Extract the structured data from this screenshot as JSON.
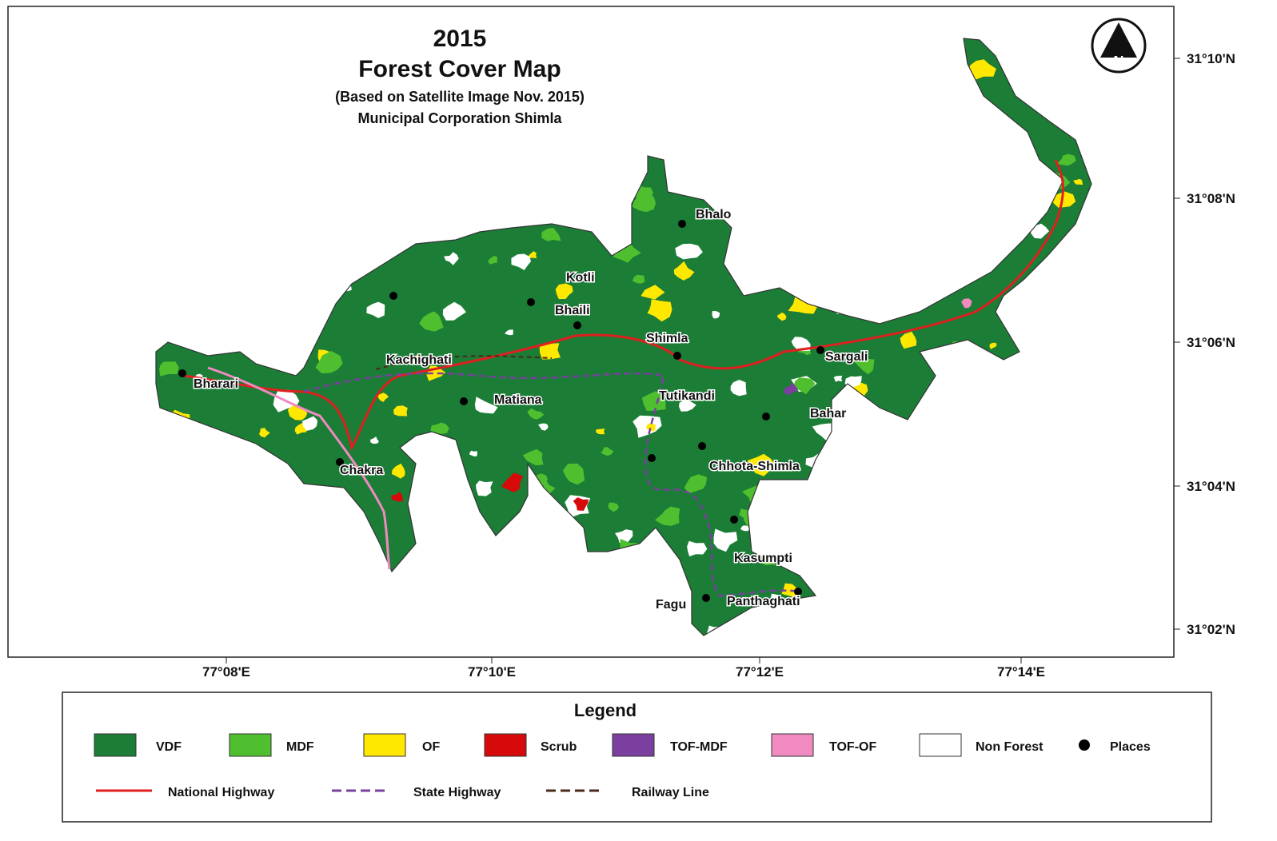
{
  "title": {
    "year": "2015",
    "main": "Forest Cover Map",
    "subtitle": "(Based on Satellite Image Nov. 2015)",
    "area": "Municipal Corporation Shimla"
  },
  "north_arrow": "N",
  "places": [
    "Bhalo",
    "Kotli",
    "Bhaili",
    "Shimla",
    "Kachighati",
    "Sargali",
    "Bharari",
    "Matiana",
    "Tutikandi",
    "Bahar",
    "Chakra",
    "Chhota-Shimla",
    "Kasumpti",
    "Fagu",
    "Panthaghati"
  ],
  "latitude_labels": [
    "31°10'N",
    "31°08'N",
    "31°06'N",
    "31°04'N",
    "31°02'N"
  ],
  "longitude_labels": [
    "77°08'E",
    "77°10'E",
    "77°12'E",
    "77°14'E"
  ],
  "legend": {
    "title": "Legend",
    "items": [
      {
        "label": "VDF",
        "color": "#1b7d36"
      },
      {
        "label": "MDF",
        "color": "#4fbf2f"
      },
      {
        "label": "OF",
        "color": "#ffe800"
      },
      {
        "label": "Scrub",
        "color": "#d60a0a"
      },
      {
        "label": "TOF-MDF",
        "color": "#7b3fa0"
      },
      {
        "label": "TOF-OF",
        "color": "#f08ac0"
      },
      {
        "label": "Non Forest",
        "color": "#ffffff"
      },
      {
        "label": "Places",
        "color": "#000000"
      }
    ],
    "lines": [
      {
        "label": "National Highway",
        "color": "#e02020",
        "style": "solid"
      },
      {
        "label": "State Highway",
        "color": "#7b3fa0",
        "style": "dashed"
      },
      {
        "label": "Railway Line",
        "color": "#4a2a1a",
        "style": "dashed"
      }
    ]
  }
}
